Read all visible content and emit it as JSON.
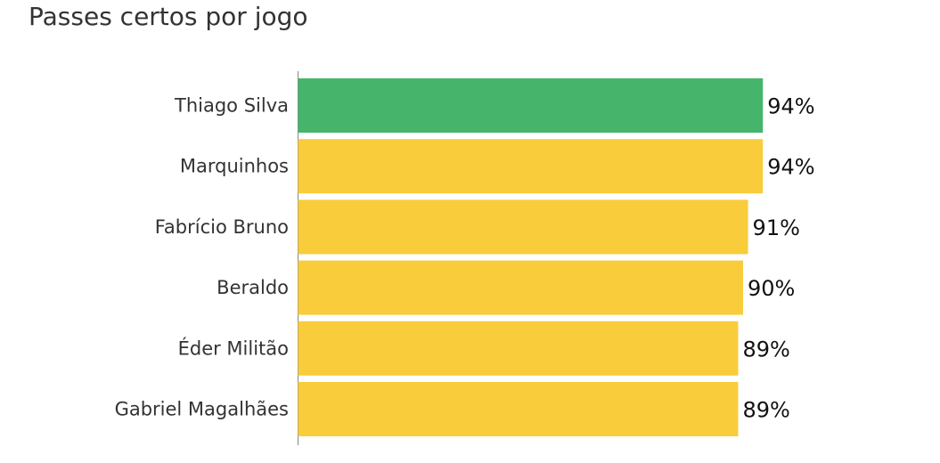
{
  "chart_data": {
    "type": "bar",
    "orientation": "horizontal",
    "title": "Passes certos por jogo",
    "categories": [
      "Thiago Silva",
      "Marquinhos",
      "Fabrício Bruno",
      "Beraldo",
      "Éder Militão",
      "Gabriel Magalhães"
    ],
    "values": [
      94,
      94,
      91,
      90,
      89,
      89
    ],
    "value_labels": [
      "94%",
      "94%",
      "91%",
      "90%",
      "89%",
      "89%"
    ],
    "colors": [
      "#46b46a",
      "#f9cc3c",
      "#f9cc3c",
      "#f9cc3c",
      "#f9cc3c",
      "#f9cc3c"
    ],
    "xlim": [
      0,
      100
    ]
  }
}
